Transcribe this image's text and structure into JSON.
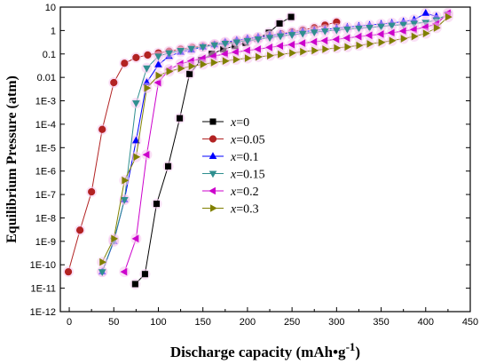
{
  "chart_data": {
    "type": "scatter",
    "xlabel": "Discharge capacity (mAh•g",
    "xlabel_sup": "-1",
    "xlabel_end": ")",
    "ylabel": "Equilibrium Pressure (atm)",
    "xlim": [
      -10,
      450
    ],
    "ylim_log10": [
      -12,
      1
    ],
    "y_scale": "log",
    "x_ticks": [
      0,
      50,
      100,
      150,
      200,
      250,
      300,
      350,
      400,
      450
    ],
    "y_tick_labels": [
      "10",
      "1",
      "0.1",
      "0.01",
      "1E-3",
      "1E-4",
      "1E-5",
      "1E-6",
      "1E-7",
      "1E-8",
      "1E-9",
      "1E-10",
      "1E-11",
      "1E-12"
    ],
    "y_tick_values": [
      10,
      1,
      0.1,
      0.01,
      0.001,
      0.0001,
      1e-05,
      1e-06,
      1e-07,
      1e-08,
      1e-09,
      1e-10,
      1e-11,
      1e-12
    ],
    "legend_position": "center-right",
    "grid": false,
    "series": [
      {
        "name": "x=0",
        "name_var": "x",
        "name_val": "=0",
        "color": "#000000",
        "marker": "square",
        "points": [
          [
            74,
            1.5e-11
          ],
          [
            85,
            4e-11
          ],
          [
            98,
            4e-08
          ],
          [
            111,
            1.6e-06
          ],
          [
            124,
            0.00018
          ],
          [
            135,
            0.014
          ],
          [
            148,
            0.055
          ],
          [
            160,
            0.1
          ],
          [
            173,
            0.16
          ],
          [
            186,
            0.22
          ],
          [
            198,
            0.3
          ],
          [
            211,
            0.45
          ],
          [
            224,
            0.8
          ],
          [
            236,
            2.0
          ],
          [
            249,
            3.8
          ]
        ]
      },
      {
        "name": "x=0.05",
        "name_var": "x",
        "name_val": "=0.05",
        "color": "#b22222",
        "marker": "circle",
        "points": [
          [
            -1,
            5e-11
          ],
          [
            12,
            3e-09
          ],
          [
            25,
            1.3e-07
          ],
          [
            37,
            6e-05
          ],
          [
            50,
            0.006
          ],
          [
            62,
            0.04
          ],
          [
            75,
            0.07
          ],
          [
            88,
            0.09
          ],
          [
            100,
            0.11
          ],
          [
            112,
            0.13
          ],
          [
            125,
            0.16
          ],
          [
            138,
            0.19
          ],
          [
            150,
            0.22
          ],
          [
            163,
            0.26
          ],
          [
            175,
            0.3
          ],
          [
            188,
            0.36
          ],
          [
            200,
            0.42
          ],
          [
            212,
            0.5
          ],
          [
            225,
            0.6
          ],
          [
            238,
            0.72
          ],
          [
            250,
            0.88
          ],
          [
            262,
            1.05
          ],
          [
            275,
            1.3
          ],
          [
            287,
            1.7
          ],
          [
            300,
            2.3
          ]
        ]
      },
      {
        "name": "x=0.1",
        "name_var": "x",
        "name_val": "=0.1",
        "color": "#0000ff",
        "marker": "triangle-up",
        "points": [
          [
            37,
            5e-11
          ],
          [
            50,
            1e-09
          ],
          [
            62,
            6e-08
          ],
          [
            75,
            2e-05
          ],
          [
            87,
            0.006
          ],
          [
            100,
            0.035
          ],
          [
            112,
            0.08
          ],
          [
            125,
            0.12
          ],
          [
            137,
            0.15
          ],
          [
            150,
            0.2
          ],
          [
            163,
            0.25
          ],
          [
            175,
            0.32
          ],
          [
            188,
            0.38
          ],
          [
            200,
            0.45
          ],
          [
            212,
            0.52
          ],
          [
            225,
            0.6
          ],
          [
            237,
            0.7
          ],
          [
            250,
            0.8
          ],
          [
            262,
            0.9
          ],
          [
            275,
            1.0
          ],
          [
            287,
            1.1
          ],
          [
            300,
            1.25
          ],
          [
            312,
            1.4
          ],
          [
            325,
            1.55
          ],
          [
            337,
            1.7
          ],
          [
            350,
            1.9
          ],
          [
            362,
            2.1
          ],
          [
            375,
            2.4
          ],
          [
            387,
            2.9
          ],
          [
            400,
            5.5
          ],
          [
            412,
            4.0
          ]
        ]
      },
      {
        "name": "x=0.15",
        "name_var": "x",
        "name_val": "=0.15",
        "color": "#2f8f8f",
        "marker": "triangle-down",
        "points": [
          [
            37,
            5e-11
          ],
          [
            50,
            1.1e-09
          ],
          [
            62,
            6e-08
          ],
          [
            75,
            0.0008
          ],
          [
            87,
            0.025
          ],
          [
            100,
            0.08
          ],
          [
            112,
            0.11
          ],
          [
            125,
            0.14
          ],
          [
            137,
            0.17
          ],
          [
            150,
            0.2
          ],
          [
            163,
            0.24
          ],
          [
            175,
            0.28
          ],
          [
            188,
            0.32
          ],
          [
            200,
            0.37
          ],
          [
            212,
            0.43
          ],
          [
            225,
            0.5
          ],
          [
            237,
            0.58
          ],
          [
            250,
            0.66
          ],
          [
            262,
            0.75
          ],
          [
            275,
            0.85
          ],
          [
            287,
            0.95
          ],
          [
            300,
            1.05
          ],
          [
            312,
            1.15
          ],
          [
            325,
            1.25
          ],
          [
            337,
            1.35
          ],
          [
            350,
            1.5
          ],
          [
            362,
            1.65
          ],
          [
            375,
            1.8
          ],
          [
            387,
            2.0
          ],
          [
            400,
            2.2
          ],
          [
            412,
            2.8
          ],
          [
            425,
            5.0
          ]
        ]
      },
      {
        "name": "x=0.2",
        "name_var": "x",
        "name_val": "=0.2",
        "color": "#cc00cc",
        "marker": "triangle-left",
        "points": [
          [
            62,
            5e-11
          ],
          [
            75,
            1.3e-09
          ],
          [
            87,
            5e-06
          ],
          [
            100,
            0.006
          ],
          [
            112,
            0.022
          ],
          [
            125,
            0.038
          ],
          [
            137,
            0.05
          ],
          [
            150,
            0.065
          ],
          [
            162,
            0.08
          ],
          [
            175,
            0.1
          ],
          [
            187,
            0.12
          ],
          [
            200,
            0.14
          ],
          [
            212,
            0.16
          ],
          [
            225,
            0.19
          ],
          [
            237,
            0.22
          ],
          [
            250,
            0.25
          ],
          [
            262,
            0.29
          ],
          [
            275,
            0.33
          ],
          [
            287,
            0.37
          ],
          [
            300,
            0.42
          ],
          [
            312,
            0.48
          ],
          [
            325,
            0.55
          ],
          [
            337,
            0.62
          ],
          [
            350,
            0.7
          ],
          [
            362,
            0.8
          ],
          [
            375,
            0.95
          ],
          [
            387,
            1.1
          ],
          [
            400,
            1.4
          ],
          [
            412,
            1.9
          ],
          [
            425,
            5.5
          ]
        ]
      },
      {
        "name": "x=0.3",
        "name_var": "x",
        "name_val": "=0.3",
        "color": "#808000",
        "marker": "triangle-right",
        "points": [
          [
            37,
            1.3e-10
          ],
          [
            50,
            1.3e-09
          ],
          [
            62,
            4e-07
          ],
          [
            75,
            4e-06
          ],
          [
            87,
            0.0035
          ],
          [
            100,
            0.012
          ],
          [
            112,
            0.018
          ],
          [
            125,
            0.024
          ],
          [
            137,
            0.03
          ],
          [
            150,
            0.036
          ],
          [
            162,
            0.043
          ],
          [
            175,
            0.05
          ],
          [
            187,
            0.058
          ],
          [
            200,
            0.066
          ],
          [
            212,
            0.075
          ],
          [
            225,
            0.085
          ],
          [
            237,
            0.096
          ],
          [
            250,
            0.11
          ],
          [
            262,
            0.125
          ],
          [
            275,
            0.14
          ],
          [
            287,
            0.16
          ],
          [
            300,
            0.18
          ],
          [
            312,
            0.2
          ],
          [
            325,
            0.23
          ],
          [
            337,
            0.27
          ],
          [
            350,
            0.31
          ],
          [
            362,
            0.37
          ],
          [
            375,
            0.45
          ],
          [
            387,
            0.56
          ],
          [
            400,
            0.75
          ],
          [
            412,
            1.3
          ],
          [
            425,
            3.8
          ]
        ]
      }
    ]
  }
}
